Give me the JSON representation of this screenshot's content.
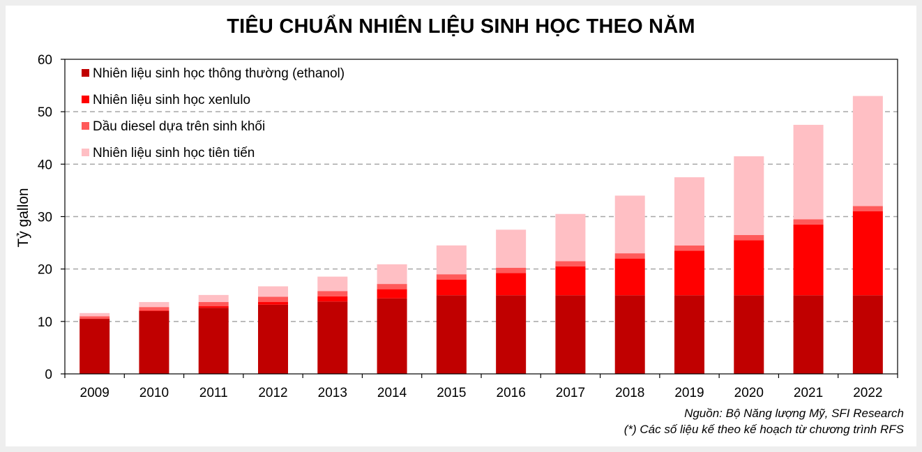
{
  "title": "TIÊU CHUẨN NHIÊN LIỆU SINH HỌC THEO NĂM",
  "source_note": "Nguồn: Bộ Năng lượng Mỹ, SFI Research",
  "footnote": "(*) Các số liệu kế theo kế hoạch từ chương trình RFS",
  "chart_data": {
    "type": "bar",
    "stacked": true,
    "ylabel": "Tỷ gallon",
    "xlabel": "",
    "ylim": [
      0,
      60
    ],
    "yticks": [
      0,
      10,
      20,
      30,
      40,
      50,
      60
    ],
    "grid": "horizontal dashed",
    "legend_position": "top-left",
    "categories": [
      "2009",
      "2010",
      "2011",
      "2012",
      "2013",
      "2014",
      "2015",
      "2016",
      "2017",
      "2018",
      "2019",
      "2020",
      "2021",
      "2022"
    ],
    "series": [
      {
        "name": "Nhiên liệu sinh học thông thường (ethanol)",
        "color": "#c00000",
        "values": [
          10.5,
          12.0,
          12.6,
          13.2,
          13.8,
          14.4,
          15.0,
          15.0,
          15.0,
          15.0,
          15.0,
          15.0,
          15.0,
          15.0
        ]
      },
      {
        "name": "Nhiên liệu sinh học xenlulo",
        "color": "#ff0000",
        "values": [
          0.0,
          0.1,
          0.3,
          0.5,
          1.0,
          1.75,
          3.0,
          4.25,
          5.5,
          7.0,
          8.5,
          10.5,
          13.5,
          16.0
        ]
      },
      {
        "name": "Dầu diesel dựa trên sinh khối",
        "color": "#ff5a5a",
        "values": [
          0.5,
          0.65,
          0.8,
          1.0,
          1.0,
          1.0,
          1.0,
          1.0,
          1.0,
          1.0,
          1.0,
          1.0,
          1.0,
          1.0
        ]
      },
      {
        "name": "Nhiên liệu sinh học tiên tiến",
        "color": "#ffbfc4",
        "values": [
          0.6,
          0.95,
          1.35,
          2.0,
          2.75,
          3.75,
          5.5,
          7.25,
          9.0,
          11.0,
          13.0,
          15.0,
          18.0,
          21.0
        ]
      }
    ]
  }
}
